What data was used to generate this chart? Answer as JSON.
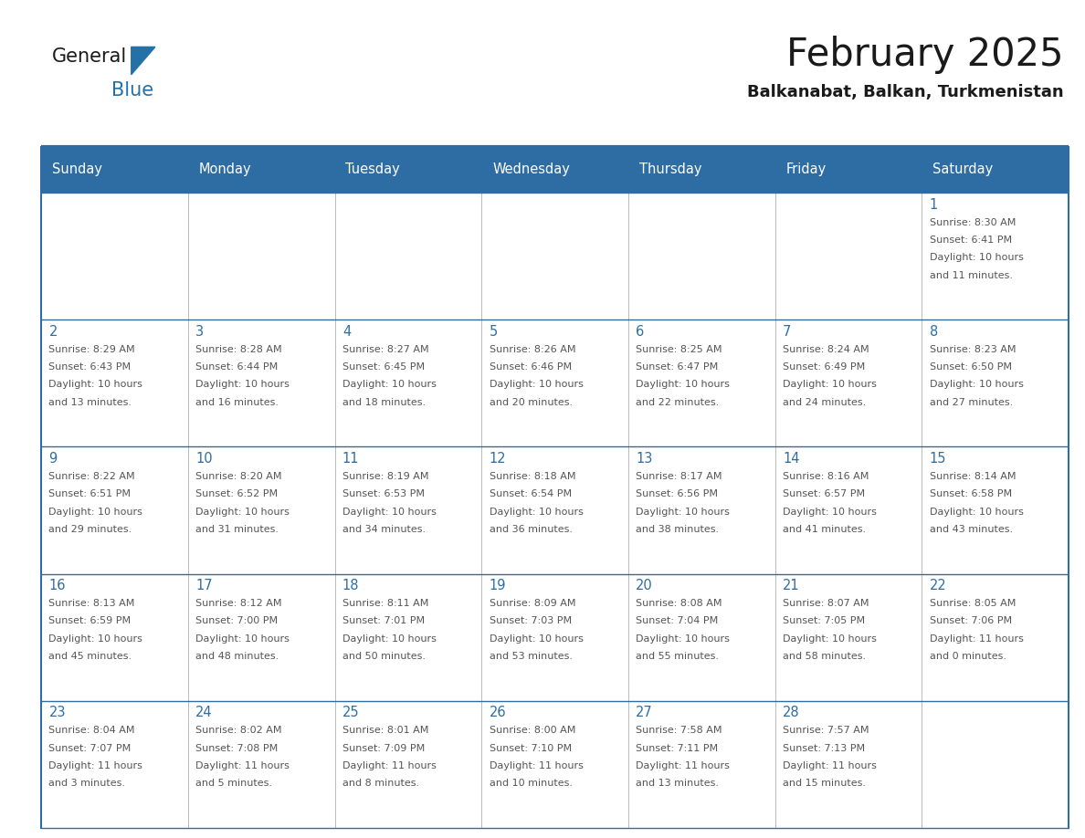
{
  "title": "February 2025",
  "subtitle": "Balkanabat, Balkan, Turkmenistan",
  "header_bg": "#2E6DA4",
  "header_text": "#FFFFFF",
  "cell_bg": "#F5F5F5",
  "grid_line_color": "#2E6DA4",
  "grid_line_color_inner": "#AAAAAA",
  "day_names": [
    "Sunday",
    "Monday",
    "Tuesday",
    "Wednesday",
    "Thursday",
    "Friday",
    "Saturday"
  ],
  "text_color": "#555555",
  "day_num_color": "#2E6DA4",
  "logo_general_color": "#1a1a1a",
  "logo_blue_color": "#2471A8",
  "calendar": [
    [
      null,
      null,
      null,
      null,
      null,
      null,
      {
        "day": 1,
        "sunrise": "8:30 AM",
        "sunset": "6:41 PM",
        "daylight": "10 hours and 11 minutes."
      }
    ],
    [
      {
        "day": 2,
        "sunrise": "8:29 AM",
        "sunset": "6:43 PM",
        "daylight": "10 hours and 13 minutes."
      },
      {
        "day": 3,
        "sunrise": "8:28 AM",
        "sunset": "6:44 PM",
        "daylight": "10 hours and 16 minutes."
      },
      {
        "day": 4,
        "sunrise": "8:27 AM",
        "sunset": "6:45 PM",
        "daylight": "10 hours and 18 minutes."
      },
      {
        "day": 5,
        "sunrise": "8:26 AM",
        "sunset": "6:46 PM",
        "daylight": "10 hours and 20 minutes."
      },
      {
        "day": 6,
        "sunrise": "8:25 AM",
        "sunset": "6:47 PM",
        "daylight": "10 hours and 22 minutes."
      },
      {
        "day": 7,
        "sunrise": "8:24 AM",
        "sunset": "6:49 PM",
        "daylight": "10 hours and 24 minutes."
      },
      {
        "day": 8,
        "sunrise": "8:23 AM",
        "sunset": "6:50 PM",
        "daylight": "10 hours and 27 minutes."
      }
    ],
    [
      {
        "day": 9,
        "sunrise": "8:22 AM",
        "sunset": "6:51 PM",
        "daylight": "10 hours and 29 minutes."
      },
      {
        "day": 10,
        "sunrise": "8:20 AM",
        "sunset": "6:52 PM",
        "daylight": "10 hours and 31 minutes."
      },
      {
        "day": 11,
        "sunrise": "8:19 AM",
        "sunset": "6:53 PM",
        "daylight": "10 hours and 34 minutes."
      },
      {
        "day": 12,
        "sunrise": "8:18 AM",
        "sunset": "6:54 PM",
        "daylight": "10 hours and 36 minutes."
      },
      {
        "day": 13,
        "sunrise": "8:17 AM",
        "sunset": "6:56 PM",
        "daylight": "10 hours and 38 minutes."
      },
      {
        "day": 14,
        "sunrise": "8:16 AM",
        "sunset": "6:57 PM",
        "daylight": "10 hours and 41 minutes."
      },
      {
        "day": 15,
        "sunrise": "8:14 AM",
        "sunset": "6:58 PM",
        "daylight": "10 hours and 43 minutes."
      }
    ],
    [
      {
        "day": 16,
        "sunrise": "8:13 AM",
        "sunset": "6:59 PM",
        "daylight": "10 hours and 45 minutes."
      },
      {
        "day": 17,
        "sunrise": "8:12 AM",
        "sunset": "7:00 PM",
        "daylight": "10 hours and 48 minutes."
      },
      {
        "day": 18,
        "sunrise": "8:11 AM",
        "sunset": "7:01 PM",
        "daylight": "10 hours and 50 minutes."
      },
      {
        "day": 19,
        "sunrise": "8:09 AM",
        "sunset": "7:03 PM",
        "daylight": "10 hours and 53 minutes."
      },
      {
        "day": 20,
        "sunrise": "8:08 AM",
        "sunset": "7:04 PM",
        "daylight": "10 hours and 55 minutes."
      },
      {
        "day": 21,
        "sunrise": "8:07 AM",
        "sunset": "7:05 PM",
        "daylight": "10 hours and 58 minutes."
      },
      {
        "day": 22,
        "sunrise": "8:05 AM",
        "sunset": "7:06 PM",
        "daylight": "11 hours and 0 minutes."
      }
    ],
    [
      {
        "day": 23,
        "sunrise": "8:04 AM",
        "sunset": "7:07 PM",
        "daylight": "11 hours and 3 minutes."
      },
      {
        "day": 24,
        "sunrise": "8:02 AM",
        "sunset": "7:08 PM",
        "daylight": "11 hours and 5 minutes."
      },
      {
        "day": 25,
        "sunrise": "8:01 AM",
        "sunset": "7:09 PM",
        "daylight": "11 hours and 8 minutes."
      },
      {
        "day": 26,
        "sunrise": "8:00 AM",
        "sunset": "7:10 PM",
        "daylight": "11 hours and 10 minutes."
      },
      {
        "day": 27,
        "sunrise": "7:58 AM",
        "sunset": "7:11 PM",
        "daylight": "11 hours and 13 minutes."
      },
      {
        "day": 28,
        "sunrise": "7:57 AM",
        "sunset": "7:13 PM",
        "daylight": "11 hours and 15 minutes."
      },
      null
    ]
  ]
}
